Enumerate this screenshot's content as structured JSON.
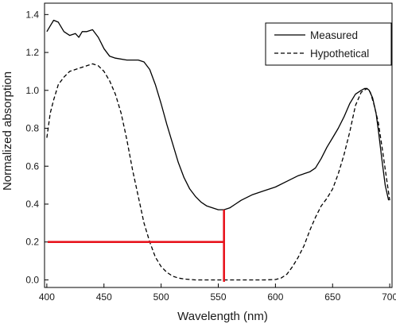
{
  "chart_data": {
    "type": "line",
    "title": "",
    "xlabel": "Wavelength (nm)",
    "ylabel": "Normalized absorption",
    "xlim": [
      398,
      702
    ],
    "ylim": [
      -0.04,
      1.46
    ],
    "xticks": [
      400,
      450,
      500,
      550,
      600,
      650,
      700
    ],
    "yticks": [
      0.0,
      0.2,
      0.4,
      0.6,
      0.8,
      1.0,
      1.2,
      1.4
    ],
    "ytick_labels": [
      "0.0",
      "0.2",
      "0.4",
      "0.6",
      "0.8",
      "1.0",
      "1.2",
      "1.4"
    ],
    "grid": false,
    "legend_position": "top-right",
    "series": [
      {
        "name": "Measured",
        "style": "solid",
        "color": "#000000",
        "x": [
          400,
          403,
          406,
          410,
          415,
          420,
          425,
          428,
          431,
          435,
          440,
          445,
          450,
          455,
          460,
          470,
          480,
          485,
          490,
          495,
          500,
          505,
          510,
          515,
          520,
          525,
          530,
          535,
          540,
          545,
          550,
          555,
          560,
          565,
          570,
          580,
          590,
          600,
          610,
          620,
          625,
          630,
          635,
          640,
          645,
          650,
          655,
          660,
          665,
          670,
          675,
          678,
          680,
          682,
          685,
          688,
          690,
          693,
          696,
          699
        ],
        "y": [
          1.31,
          1.34,
          1.37,
          1.36,
          1.31,
          1.29,
          1.3,
          1.28,
          1.31,
          1.31,
          1.32,
          1.28,
          1.22,
          1.18,
          1.17,
          1.16,
          1.16,
          1.15,
          1.11,
          1.03,
          0.93,
          0.82,
          0.72,
          0.62,
          0.54,
          0.48,
          0.44,
          0.41,
          0.39,
          0.38,
          0.37,
          0.37,
          0.38,
          0.4,
          0.42,
          0.45,
          0.47,
          0.49,
          0.52,
          0.55,
          0.56,
          0.57,
          0.59,
          0.64,
          0.7,
          0.75,
          0.8,
          0.86,
          0.93,
          0.98,
          1.0,
          1.01,
          1.01,
          1.0,
          0.96,
          0.88,
          0.79,
          0.64,
          0.5,
          0.42
        ]
      },
      {
        "name": "Hypothetical",
        "style": "dashed",
        "color": "#000000",
        "x": [
          400,
          403,
          406,
          410,
          415,
          420,
          425,
          430,
          435,
          440,
          445,
          450,
          455,
          460,
          465,
          470,
          475,
          480,
          485,
          490,
          495,
          500,
          505,
          510,
          515,
          520,
          530,
          540,
          550,
          560,
          570,
          580,
          590,
          600,
          605,
          610,
          615,
          620,
          625,
          630,
          635,
          640,
          645,
          650,
          655,
          660,
          665,
          670,
          675,
          680,
          683,
          686,
          690,
          694,
          698,
          700
        ],
        "y": [
          0.75,
          0.88,
          0.95,
          1.03,
          1.07,
          1.1,
          1.11,
          1.12,
          1.13,
          1.14,
          1.13,
          1.1,
          1.05,
          0.98,
          0.88,
          0.74,
          0.58,
          0.44,
          0.3,
          0.2,
          0.12,
          0.07,
          0.04,
          0.02,
          0.01,
          0.005,
          0,
          0,
          0,
          0,
          0,
          0,
          0,
          0.002,
          0.01,
          0.03,
          0.07,
          0.12,
          0.18,
          0.26,
          0.33,
          0.39,
          0.43,
          0.48,
          0.56,
          0.66,
          0.78,
          0.92,
          0.99,
          1.01,
          0.99,
          0.93,
          0.83,
          0.67,
          0.5,
          0.42
        ]
      }
    ],
    "annotations": [
      {
        "type": "guide-lines",
        "color": "#e8141d",
        "x": 555,
        "y": 0.2,
        "note": "red marker lines at 555 nm and 0.2"
      }
    ]
  }
}
